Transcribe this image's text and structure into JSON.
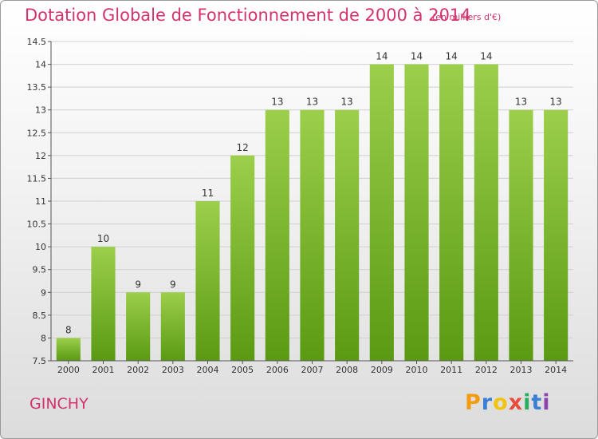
{
  "header": {
    "title": "Dotation Globale de Fonctionnement de 2000 à 2014",
    "subtitle": "(en milliers d'€)"
  },
  "footer": {
    "town": "GINCHY",
    "brand": "Proxiti"
  },
  "colors": {
    "title": "#d2336f",
    "bar_top": "#9ccf4b",
    "bar_bottom": "#5a9a12",
    "grid": "#d0d0d0"
  },
  "chart_data": {
    "type": "bar",
    "title": "Dotation Globale de Fonctionnement de 2000 à 2014",
    "subtitle": "(en milliers d'€)",
    "xlabel": "",
    "ylabel": "",
    "categories": [
      "2000",
      "2001",
      "2002",
      "2003",
      "2004",
      "2005",
      "2006",
      "2007",
      "2008",
      "2009",
      "2010",
      "2011",
      "2012",
      "2013",
      "2014"
    ],
    "values": [
      8,
      10,
      9,
      9,
      11,
      12,
      13,
      13,
      13,
      14,
      14,
      14,
      14,
      13,
      13
    ],
    "data_labels": [
      "8",
      "10",
      "9",
      "9",
      "11",
      "12",
      "13",
      "13",
      "13",
      "14",
      "14",
      "14",
      "14",
      "13",
      "13"
    ],
    "ylim": [
      7.5,
      14.5
    ],
    "yticks": [
      7.5,
      8,
      8.5,
      9,
      9.5,
      10,
      10.5,
      11,
      11.5,
      12,
      12.5,
      13,
      13.5,
      14,
      14.5
    ],
    "ytick_labels": [
      "7.5",
      "8",
      "8.5",
      "9",
      "9.5",
      "10",
      "10.5",
      "11",
      "11.5",
      "12",
      "12.5",
      "13",
      "13.5",
      "14",
      "14.5"
    ],
    "grid": true,
    "legend": "none"
  }
}
